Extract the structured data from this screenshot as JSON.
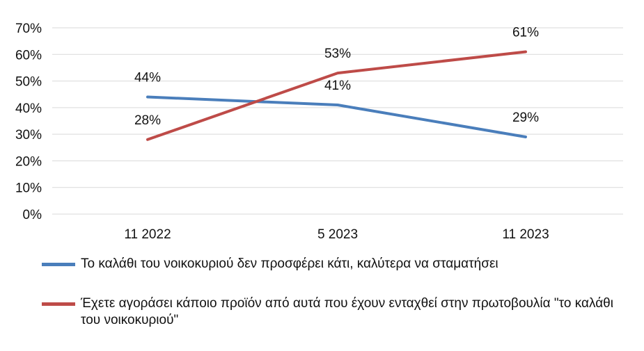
{
  "chart_data": {
    "type": "line",
    "categories": [
      "11 2022",
      "5 2023",
      "11 2023"
    ],
    "ylim": [
      0,
      70
    ],
    "yticks": [
      "0%",
      "10%",
      "20%",
      "30%",
      "40%",
      "50%",
      "60%",
      "70%"
    ],
    "ytick_values": [
      0,
      10,
      20,
      30,
      40,
      50,
      60,
      70
    ],
    "grid": true,
    "legend_position": "bottom",
    "series": [
      {
        "name": "Το καλάθι του νοικοκυριού δεν προσφέρει κάτι, καλύτερα να σταματήσει",
        "color": "#4a7ebb",
        "values": [
          44,
          41,
          29
        ],
        "labels": [
          "44%",
          "41%",
          "29%"
        ]
      },
      {
        "name": "Έχετε αγοράσει κάποιο προϊόν από αυτά που έχουν ενταχθεί στην πρωτοβουλία \"το καλάθι του νοικοκυριού\"",
        "color": "#be4b48",
        "values": [
          28,
          53,
          61
        ],
        "labels": [
          "28%",
          "53%",
          "61%"
        ]
      }
    ]
  }
}
